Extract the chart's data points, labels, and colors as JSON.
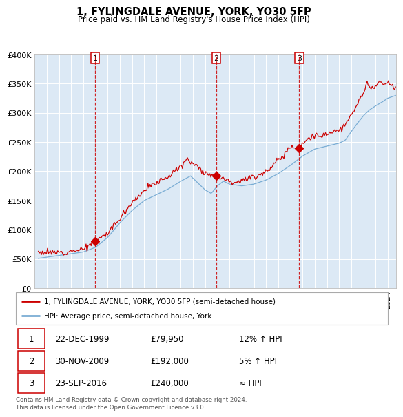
{
  "title": "1, FYLINGDALE AVENUE, YORK, YO30 5FP",
  "subtitle": "Price paid vs. HM Land Registry's House Price Index (HPI)",
  "background_color": "#dce9f5",
  "plot_bg_color": "#dce9f5",
  "red_line_color": "#cc0000",
  "blue_line_color": "#7aadd4",
  "marker_color": "#cc0000",
  "vline_color": "#cc0000",
  "grid_color": "#ffffff",
  "transactions": [
    {
      "date_num": 1999.97,
      "price": 79950,
      "label": "1"
    },
    {
      "date_num": 2009.91,
      "price": 192000,
      "label": "2"
    },
    {
      "date_num": 2016.73,
      "price": 240000,
      "label": "3"
    }
  ],
  "transaction_labels": [
    {
      "label": "1",
      "date": "22-DEC-1999",
      "price": "£79,950",
      "relation": "12% ↑ HPI"
    },
    {
      "label": "2",
      "date": "30-NOV-2009",
      "price": "£192,000",
      "relation": "5% ↑ HPI"
    },
    {
      "label": "3",
      "date": "23-SEP-2016",
      "price": "£240,000",
      "relation": "≈ HPI"
    }
  ],
  "legend_entries": [
    "1, FYLINGDALE AVENUE, YORK, YO30 5FP (semi-detached house)",
    "HPI: Average price, semi-detached house, York"
  ],
  "footer": "Contains HM Land Registry data © Crown copyright and database right 2024.\nThis data is licensed under the Open Government Licence v3.0.",
  "ylim": [
    0,
    400000
  ],
  "yticks": [
    0,
    50000,
    100000,
    150000,
    200000,
    250000,
    300000,
    350000,
    400000
  ],
  "ytick_labels": [
    "£0",
    "£50K",
    "£100K",
    "£150K",
    "£200K",
    "£250K",
    "£300K",
    "£350K",
    "£400K"
  ],
  "xlim_start": 1995.3,
  "xlim_end": 2024.7
}
